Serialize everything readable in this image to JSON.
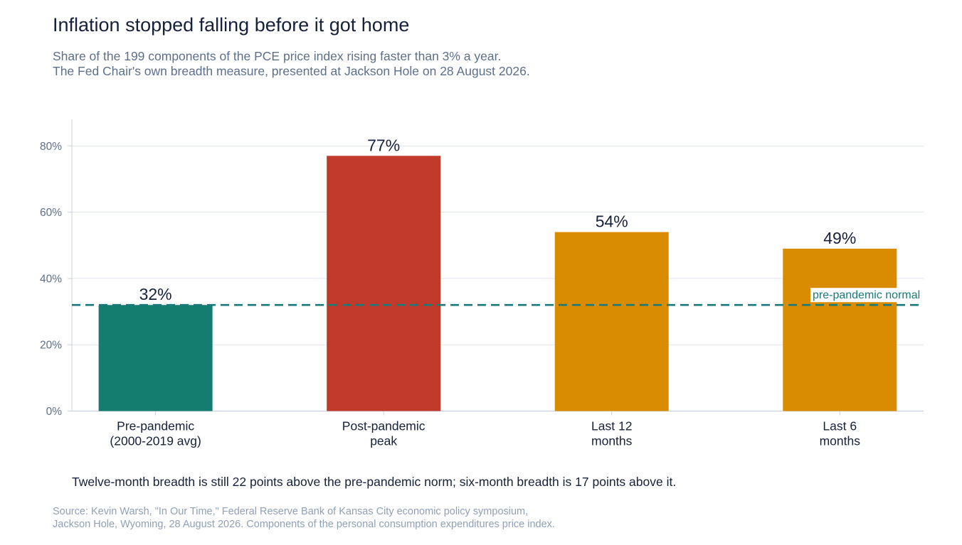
{
  "title": "Inflation stopped falling before it got home",
  "subtitle_lines": [
    "Share of the 199 components of the PCE price index rising faster than 3% a year.",
    "The Fed Chair's own breadth measure, presented at Jackson Hole on 28 August 2026."
  ],
  "chart_data": {
    "type": "bar",
    "categories": [
      [
        "Pre-pandemic",
        "(2000-2019 avg)"
      ],
      [
        "Post-pandemic",
        "peak"
      ],
      [
        "Last 12",
        "months"
      ],
      [
        "Last 6",
        "months"
      ]
    ],
    "values": [
      32,
      77,
      54,
      49
    ],
    "value_labels": [
      "32%",
      "77%",
      "54%",
      "49%"
    ],
    "bar_colors": [
      "#147d70",
      "#c0392b",
      "#d98c00",
      "#d98c00"
    ],
    "xlabel": "",
    "ylabel": "",
    "ylim": [
      0,
      88
    ],
    "yticks": [
      0,
      20,
      40,
      60,
      80
    ],
    "ytick_labels": [
      "0%",
      "20%",
      "40%",
      "60%",
      "80%"
    ],
    "grid": "horizontal",
    "reference_line": {
      "value": 32,
      "label": "pre-pandemic normal",
      "color": "#1a7a7a",
      "style": "dashed"
    },
    "colors": {
      "grid": "#dde2ec",
      "axis": "#c9d0dc",
      "tick_label": "#5d6f8c",
      "category_label": "#16213a",
      "value_label": "#16213a"
    }
  },
  "takeaway": "Twelve-month breadth is still 22 points above the pre-pandemic norm; six-month breadth is 17 points above it.",
  "source_lines": [
    "Source: Kevin Warsh, \"In Our Time,\" Federal Reserve Bank of Kansas City economic policy symposium,",
    "Jackson Hole, Wyoming, 28 August 2026. Components of the personal consumption expenditures price index."
  ]
}
